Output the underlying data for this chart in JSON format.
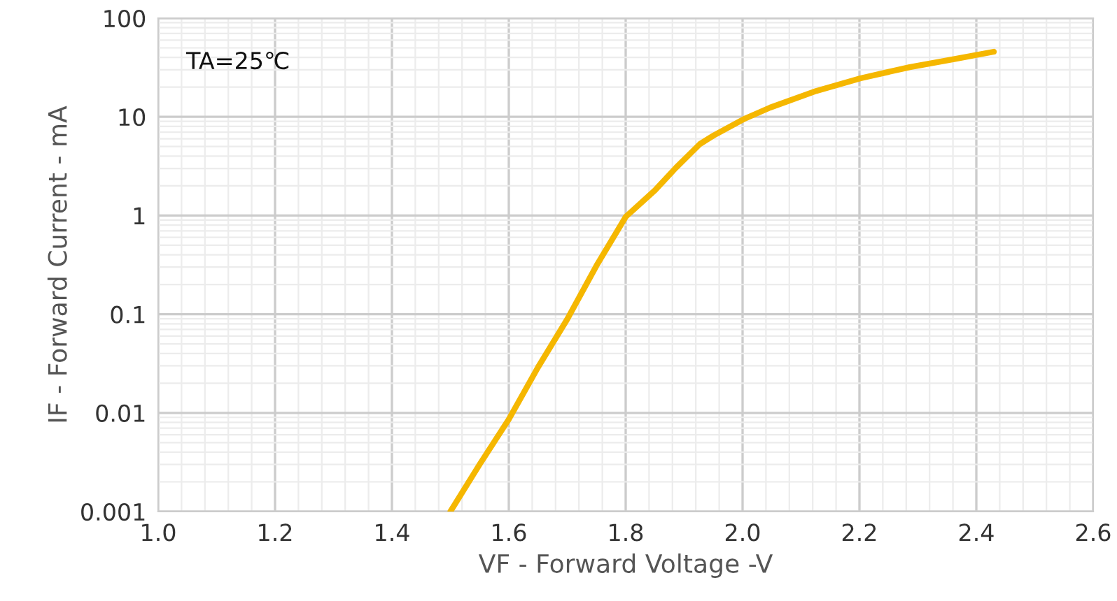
{
  "chart_data": {
    "type": "line",
    "xlabel": "VF - Forward Voltage -V",
    "ylabel": "IF - Forward Current - mA",
    "log": "y",
    "grid": true,
    "marker": "none",
    "line_style": "solid",
    "xlim": [
      1.0,
      2.6
    ],
    "xticks": [
      {
        "value": 1.0,
        "label": "1.0"
      },
      {
        "value": 1.2,
        "label": "1.2"
      },
      {
        "value": 1.4,
        "label": "1.4"
      },
      {
        "value": 1.6,
        "label": "1.6"
      },
      {
        "value": 1.8,
        "label": "1.8"
      },
      {
        "value": 2.0,
        "label": "2.0"
      },
      {
        "value": 2.2,
        "label": "2.2"
      },
      {
        "value": 2.4,
        "label": "2.4"
      },
      {
        "value": 2.6,
        "label": "2.6"
      }
    ],
    "ylim": [
      0.001,
      100
    ],
    "yticks": [
      0.001,
      0.01,
      0.1,
      1,
      10,
      100
    ],
    "annotations": [
      "TA=25℃"
    ],
    "series": [
      {
        "color": "#f5b700",
        "x": [
          1.5,
          1.55,
          1.6,
          1.65,
          1.7,
          1.75,
          1.8,
          1.85,
          1.886,
          1.927,
          1.951,
          2.004,
          2.047,
          2.126,
          2.202,
          2.286,
          2.365,
          2.43
        ],
        "values": [
          0.001,
          0.003,
          0.0086,
          0.029,
          0.089,
          0.31,
          0.97,
          1.8,
          3.05,
          5.3,
          6.5,
          9.6,
          12.4,
          18.3,
          24.6,
          31.9,
          38.8,
          45.7
        ]
      }
    ]
  }
}
